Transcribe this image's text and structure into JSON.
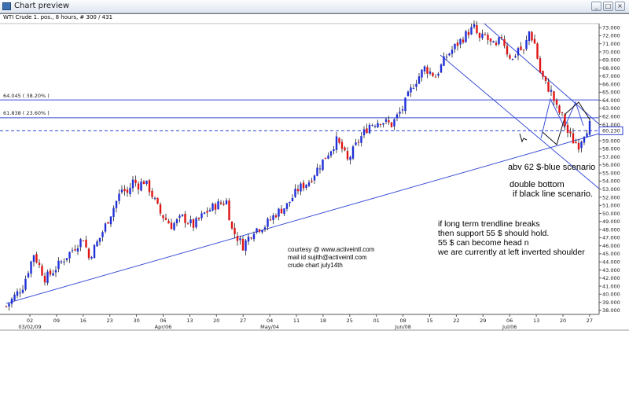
{
  "window": {
    "title": "Chart preview"
  },
  "header": {
    "text": "WTI Crude 1. pos., 8 hours, # 300 / 431"
  },
  "levels": [
    {
      "label": "64.045 ( 38.20% )",
      "value": 64.045
    },
    {
      "label": "61.838 ( 23.60% )",
      "value": 61.838
    }
  ],
  "current": {
    "label": "60.230",
    "value": 60.23
  },
  "notes": {
    "courtesy": [
      "courtesy @ www.activeintl.com",
      "mail id sujith@activeintl.com",
      "crude chart july14th"
    ],
    "blue": "abv 62 $-blue scenario",
    "black": [
      "double bottom",
      "if black line scenario."
    ],
    "trend": [
      "if long term trendline breaks",
      "then support 55 $ should hold.",
      "55 $ can become head n",
      "we are currently at left inverted shoulder"
    ]
  },
  "chart_data": {
    "type": "candlestick",
    "title": "WTI Crude 1. pos., 8 hours",
    "ylim": [
      37.5,
      73.5
    ],
    "y_ticks": [
      38,
      39,
      40,
      41,
      42,
      43,
      44,
      45,
      46,
      47,
      48,
      49,
      50,
      51,
      52,
      53,
      54,
      55,
      56,
      57,
      58,
      59,
      60,
      61,
      62,
      63,
      64,
      65,
      66,
      67,
      68,
      69,
      70,
      71,
      72,
      73
    ],
    "x_day_ticks": [
      "02",
      "09",
      "16",
      "23",
      "30",
      "06",
      "13",
      "20",
      "27",
      "04",
      "11",
      "18",
      "25",
      "01",
      "08",
      "15",
      "22",
      "29",
      "06",
      "13",
      "20",
      "27"
    ],
    "x_month_labels": [
      "03/02/09",
      "Apr/06",
      "May/04",
      "Jun/08",
      "Jul/06"
    ],
    "price_path": [
      [
        0,
        38.5
      ],
      [
        3,
        41
      ],
      [
        5,
        45
      ],
      [
        7,
        42
      ],
      [
        8,
        42.5
      ],
      [
        10,
        44
      ],
      [
        12,
        45.5
      ],
      [
        14,
        47
      ],
      [
        15,
        44.5
      ],
      [
        17,
        47
      ],
      [
        19,
        50
      ],
      [
        21,
        53
      ],
      [
        22,
        52.5
      ],
      [
        23,
        54
      ],
      [
        24,
        53.5
      ],
      [
        25,
        54
      ],
      [
        26,
        53
      ],
      [
        28,
        50
      ],
      [
        30,
        48.5
      ],
      [
        32,
        49.5
      ],
      [
        34,
        48.5
      ],
      [
        36,
        50
      ],
      [
        38,
        51
      ],
      [
        40,
        51.5
      ],
      [
        41,
        48
      ],
      [
        43,
        46
      ],
      [
        45,
        48
      ],
      [
        47,
        48.5
      ],
      [
        49,
        50
      ],
      [
        51,
        51
      ],
      [
        53,
        53
      ],
      [
        55,
        54
      ],
      [
        57,
        56
      ],
      [
        59,
        58
      ],
      [
        60,
        59
      ],
      [
        61,
        58
      ],
      [
        62,
        56.5
      ],
      [
        64,
        59
      ],
      [
        66,
        61
      ],
      [
        68,
        61.5
      ],
      [
        70,
        61
      ],
      [
        72,
        63
      ],
      [
        74,
        66
      ],
      [
        76,
        68
      ],
      [
        78,
        67
      ],
      [
        80,
        69.5
      ],
      [
        82,
        71
      ],
      [
        84,
        72.5
      ],
      [
        85,
        73
      ],
      [
        86,
        71.5
      ],
      [
        87,
        72
      ],
      [
        88,
        71
      ],
      [
        89,
        70.5
      ],
      [
        90,
        72
      ],
      [
        91,
        70
      ],
      [
        92,
        69
      ],
      [
        93,
        70.5
      ],
      [
        94,
        70
      ],
      [
        95,
        72.5
      ],
      [
        96,
        71
      ],
      [
        97,
        67.5
      ],
      [
        98,
        66
      ],
      [
        99,
        65
      ],
      [
        100,
        63
      ],
      [
        101,
        62
      ],
      [
        102,
        60
      ],
      [
        103,
        59
      ],
      [
        104,
        58.5
      ],
      [
        105,
        60
      ],
      [
        106,
        61
      ]
    ]
  }
}
